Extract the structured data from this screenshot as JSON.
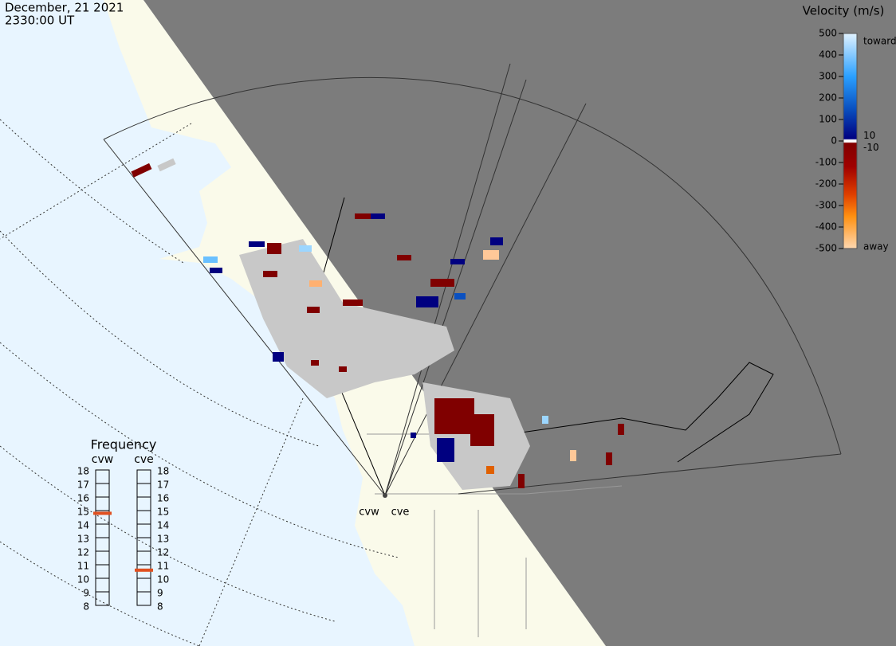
{
  "header": {
    "date": "December, 21 2021",
    "time": "2330:00 UT"
  },
  "velocity_scale": {
    "title": "Velocity (m/s)",
    "lim": [
      -500,
      500
    ],
    "ticks": [
      500,
      400,
      300,
      200,
      100,
      0,
      -100,
      -200,
      -300,
      -400,
      -500
    ],
    "inner_ticks": [
      10,
      -10
    ],
    "toward": "toward",
    "away": "away"
  },
  "frequency": {
    "title": "Frequency",
    "lim": [
      8,
      18
    ],
    "ticks": [
      18,
      17,
      16,
      15,
      14,
      13,
      12,
      11,
      10,
      9,
      8
    ],
    "radars": [
      {
        "name": "cvw",
        "value": 14.8
      },
      {
        "name": "cve",
        "value": 10.6
      }
    ]
  }
}
